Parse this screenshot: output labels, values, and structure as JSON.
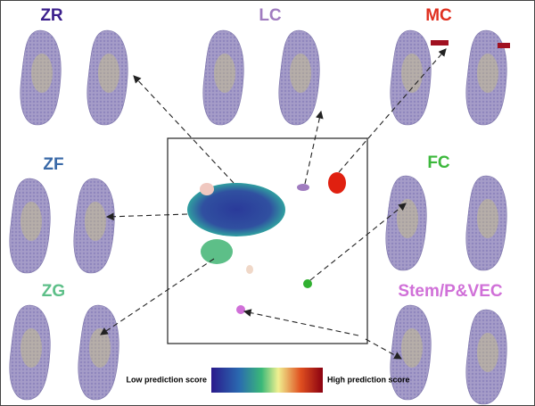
{
  "panels": [
    {
      "label": "ZR"
    },
    {
      "label": "LC"
    },
    {
      "label": "MC"
    },
    {
      "label": "ZF"
    },
    {
      "label": "FC"
    },
    {
      "label": "ZG"
    },
    {
      "label": "Stem/P&VEC"
    }
  ],
  "colorbar": {
    "low": "Low prediction score",
    "high": "High prediction score"
  }
}
